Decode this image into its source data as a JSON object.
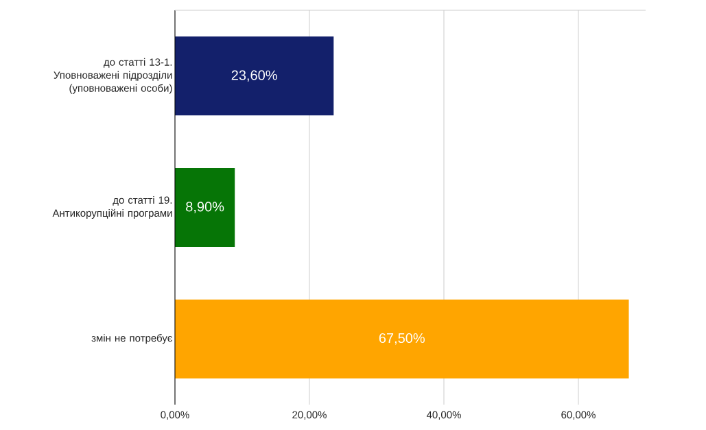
{
  "chart_data": {
    "type": "bar",
    "orientation": "horizontal",
    "categories": [
      "до статті 13-1. Уповноважені підрозділи (уповноважені особи)",
      "до статті 19. Антикорупційні програми",
      "змін не потребує"
    ],
    "values": [
      23.6,
      8.9,
      67.5
    ],
    "colors": [
      "#13206b",
      "#067506",
      "#ffa500"
    ],
    "value_labels": [
      "23,60%",
      "8,90%",
      "67,50%"
    ],
    "xlim": [
      0,
      70
    ],
    "xticks": [
      {
        "value": 0,
        "label": "0,00%"
      },
      {
        "value": 20,
        "label": "20,00%"
      },
      {
        "value": 40,
        "label": "40,00%"
      },
      {
        "value": 60,
        "label": "60,00%"
      }
    ],
    "grid": "x"
  }
}
